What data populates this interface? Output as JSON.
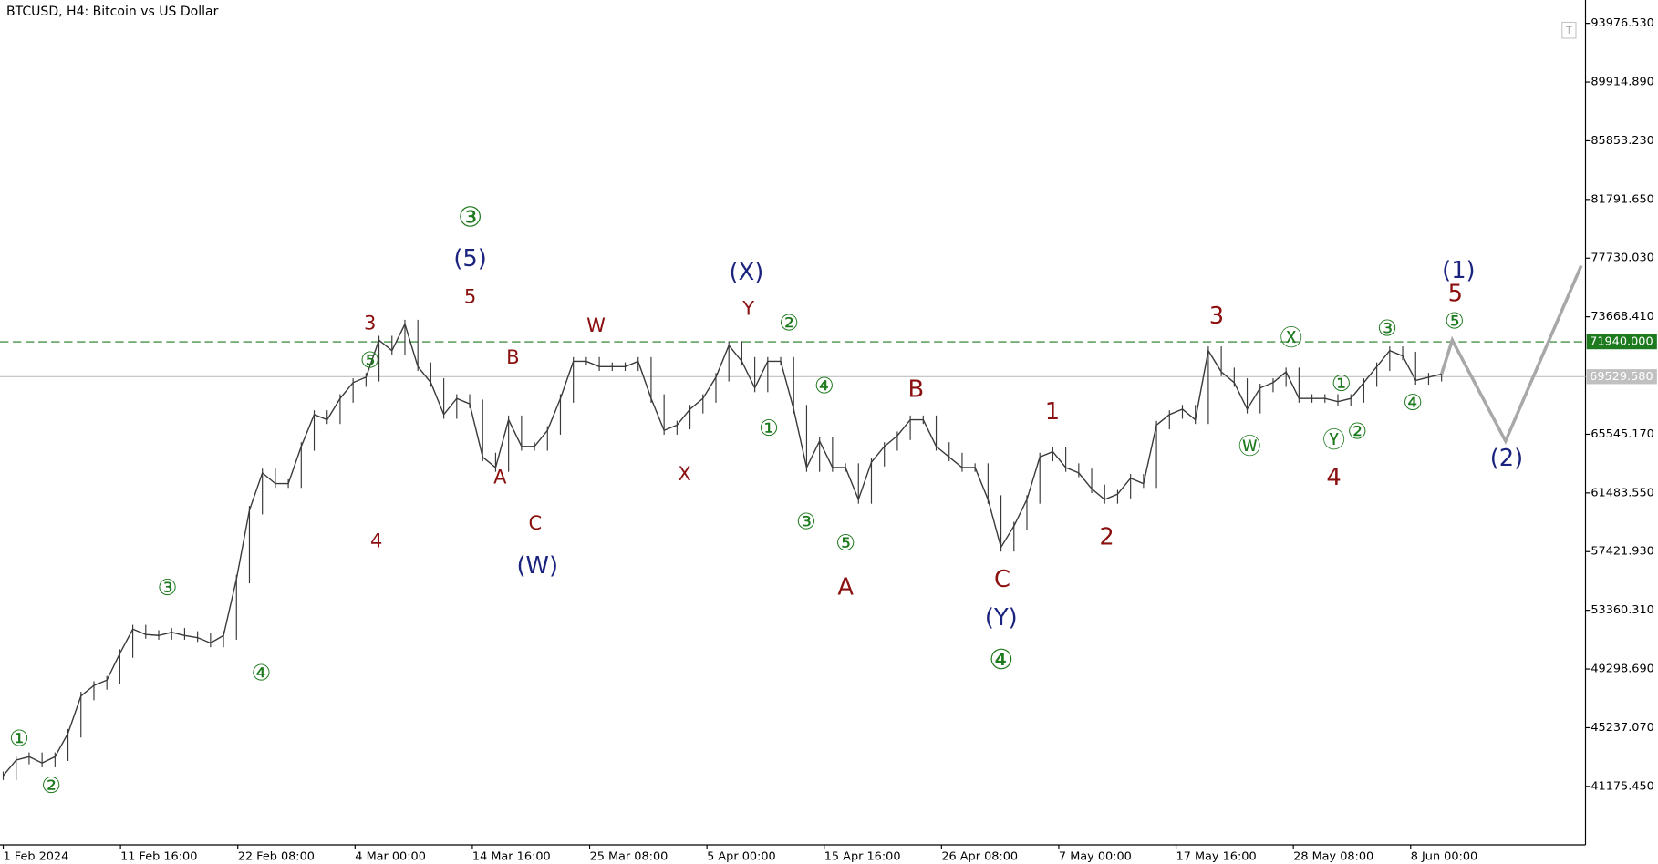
{
  "chart_data": {
    "type": "line",
    "title": "BTCUSD, H4:  Bitcoin vs US Dollar",
    "color": "#3a3a3a",
    "ylim": [
      37130,
      95594
    ],
    "yticks": [
      {
        "value": 93976.53,
        "label": "93976.530"
      },
      {
        "value": 89914.89,
        "label": "89914.890"
      },
      {
        "value": 85853.23,
        "label": "85853.230"
      },
      {
        "value": 81791.65,
        "label": "81791.650"
      },
      {
        "value": 77730.03,
        "label": "77730.030"
      },
      {
        "value": 73668.41,
        "label": "73668.410"
      },
      {
        "value": 65545.17,
        "label": "65545.170"
      },
      {
        "value": 61483.55,
        "label": "61483.550"
      },
      {
        "value": 57421.93,
        "label": "57421.930"
      },
      {
        "value": 53360.31,
        "label": "53360.310"
      },
      {
        "value": 49298.69,
        "label": "49298.690"
      },
      {
        "value": 45237.07,
        "label": "45237.070"
      },
      {
        "value": 41175.45,
        "label": "41175.450"
      }
    ],
    "xticks": [
      "1 Feb 2024",
      "11 Feb 16:00",
      "22 Feb 08:00",
      "4 Mar 00:00",
      "14 Mar 16:00",
      "25 Mar 08:00",
      "5 Apr 00:00",
      "15 Apr 16:00",
      "26 Apr 08:00",
      "7 May 00:00",
      "17 May 16:00",
      "28 May 08:00",
      "8 Jun 00:00"
    ],
    "values": [
      41910,
      43000,
      43230,
      42790,
      43230,
      44850,
      47430,
      48160,
      48530,
      50370,
      52060,
      51690,
      51620,
      51840,
      51620,
      51470,
      51100,
      51620,
      55520,
      60290,
      62870,
      62130,
      62130,
      64700,
      66910,
      66550,
      68020,
      69120,
      69490,
      72060,
      71330,
      73170,
      70220,
      69120,
      66910,
      68020,
      67650,
      63970,
      63240,
      66550,
      64700,
      64700,
      65810,
      68020,
      70590,
      70590,
      70220,
      70220,
      70220,
      70590,
      68020,
      65810,
      66180,
      67280,
      68020,
      69490,
      71690,
      70590,
      68750,
      70590,
      70590,
      67280,
      63240,
      65070,
      63240,
      63240,
      61030,
      63610,
      64700,
      65440,
      66550,
      66550,
      64700,
      63970,
      63240,
      63240,
      61030,
      57720,
      59190,
      61030,
      63970,
      64340,
      63240,
      62870,
      61770,
      61030,
      61400,
      62500,
      62130,
      66180,
      66910,
      67280,
      66550,
      71330,
      69860,
      69120,
      67280,
      68750,
      69120,
      69860,
      68020,
      68020,
      68020,
      67800,
      68020,
      69120,
      70220,
      71330,
      70960,
      69270,
      69490,
      69710
    ],
    "forecast": {
      "color": "#a8a8a8",
      "values": [
        69710,
        72060,
        65070,
        77210
      ]
    },
    "price_lines": [
      {
        "value": 71940,
        "label": "71940.000",
        "color": "#1e7a1e"
      },
      {
        "value": 69529.58,
        "label": "69529.580",
        "color": "#c0c0c0"
      }
    ],
    "annotations": [
      {
        "color": "#1e7a1e",
        "size": 26,
        "labels": [
          "③",
          "④"
        ]
      },
      {
        "color": "#1e7a1e",
        "size": 21,
        "labels": [
          "①",
          "②",
          "③",
          "④",
          "⑤",
          "②",
          "④",
          "①",
          "③",
          "⑤",
          "Ⓦ",
          "Ⓧ",
          "①",
          "Ⓨ",
          "②",
          "③",
          "④",
          "⑤"
        ]
      },
      {
        "color": "#8b1010",
        "size": 18,
        "labels": [
          "3",
          "4",
          "5",
          "B",
          "A",
          "C",
          "W",
          "X",
          "Y"
        ]
      },
      {
        "color": "#8b1010",
        "size": 22,
        "labels": [
          "A",
          "B",
          "C",
          "1",
          "2",
          "3",
          "4",
          "5"
        ]
      },
      {
        "color": "#1a237e",
        "size": 22,
        "labels": [
          "(5)",
          "(W)",
          "(X)",
          "(Y)",
          "(1)",
          "(2)"
        ]
      }
    ]
  }
}
